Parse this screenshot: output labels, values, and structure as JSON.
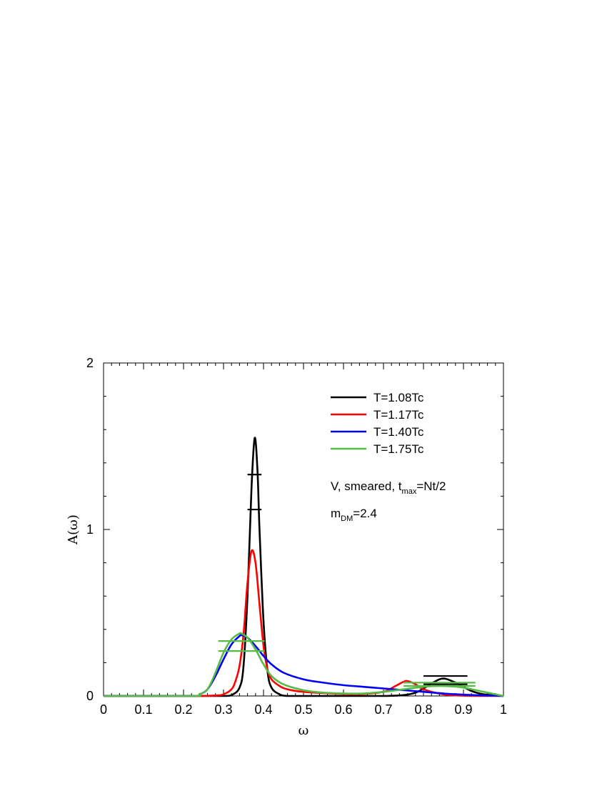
{
  "chart_data": {
    "type": "line",
    "xlabel": "ω",
    "ylabel": "A(ω)",
    "xlim": [
      0,
      1
    ],
    "ylim": [
      0,
      2
    ],
    "xticks": [
      "0",
      "0.1",
      "0.2",
      "0.3",
      "0.4",
      "0.5",
      "0.6",
      "0.7",
      "0.8",
      "0.9",
      "1"
    ],
    "yticks": [
      "0",
      "1",
      "2"
    ],
    "grid": false,
    "legend_position": "top-right",
    "series": [
      {
        "name": "T=1.08Tc",
        "color": "#000000",
        "x": [
          0.0,
          0.2,
          0.3,
          0.32,
          0.34,
          0.35,
          0.36,
          0.37,
          0.378,
          0.385,
          0.39,
          0.4,
          0.41,
          0.42,
          0.44,
          0.46,
          0.5,
          0.6,
          0.7,
          0.75,
          0.78,
          0.8,
          0.82,
          0.84,
          0.85,
          0.86,
          0.88,
          0.9,
          0.92,
          0.95,
          1.0
        ],
        "y": [
          0.0,
          0.0,
          0.0,
          0.005,
          0.05,
          0.18,
          0.6,
          1.25,
          1.55,
          1.35,
          1.0,
          0.45,
          0.15,
          0.05,
          0.01,
          0.0,
          0.0,
          0.0,
          0.0,
          0.005,
          0.02,
          0.045,
          0.075,
          0.1,
          0.105,
          0.1,
          0.08,
          0.055,
          0.03,
          0.01,
          0.0
        ],
        "error_bars": [
          {
            "x": 0.378,
            "y_low": 1.12,
            "y_high": 1.33,
            "x_low": 0.36,
            "x_high": 0.395
          },
          {
            "x": 0.85,
            "y_low": 0.07,
            "y_high": 0.12,
            "x_low": 0.8,
            "x_high": 0.91
          }
        ]
      },
      {
        "name": "T=1.17Tc",
        "color": "#ff0000",
        "x": [
          0.0,
          0.22,
          0.28,
          0.3,
          0.32,
          0.33,
          0.34,
          0.35,
          0.36,
          0.37,
          0.38,
          0.39,
          0.4,
          0.41,
          0.42,
          0.44,
          0.46,
          0.5,
          0.6,
          0.65,
          0.7,
          0.73,
          0.75,
          0.76,
          0.78,
          0.8,
          0.85,
          0.9,
          1.0
        ],
        "y": [
          0.0,
          0.0,
          0.003,
          0.01,
          0.04,
          0.09,
          0.18,
          0.37,
          0.68,
          0.87,
          0.8,
          0.55,
          0.3,
          0.16,
          0.1,
          0.06,
          0.04,
          0.025,
          0.012,
          0.012,
          0.025,
          0.06,
          0.085,
          0.09,
          0.07,
          0.04,
          0.01,
          0.002,
          0.0
        ]
      },
      {
        "name": "T=1.40Tc",
        "color": "#0000ff",
        "x": [
          0.0,
          0.22,
          0.24,
          0.26,
          0.28,
          0.3,
          0.32,
          0.34,
          0.345,
          0.36,
          0.38,
          0.4,
          0.42,
          0.45,
          0.5,
          0.55,
          0.6,
          0.65,
          0.7,
          0.75,
          0.8,
          0.85,
          0.9,
          0.95,
          1.0
        ],
        "y": [
          0.0,
          0.0,
          0.01,
          0.04,
          0.12,
          0.22,
          0.31,
          0.36,
          0.365,
          0.35,
          0.3,
          0.24,
          0.19,
          0.14,
          0.1,
          0.08,
          0.065,
          0.055,
          0.045,
          0.035,
          0.025,
          0.015,
          0.008,
          0.003,
          0.0
        ]
      },
      {
        "name": "T=1.75Tc",
        "color": "#55bb44",
        "x": [
          0.0,
          0.22,
          0.24,
          0.26,
          0.28,
          0.3,
          0.32,
          0.34,
          0.345,
          0.36,
          0.38,
          0.4,
          0.42,
          0.45,
          0.5,
          0.55,
          0.6,
          0.65,
          0.7,
          0.75,
          0.8,
          0.85,
          0.9,
          0.95,
          1.0
        ],
        "y": [
          0.0,
          0.0,
          0.01,
          0.04,
          0.14,
          0.26,
          0.34,
          0.375,
          0.375,
          0.35,
          0.28,
          0.19,
          0.12,
          0.07,
          0.035,
          0.02,
          0.015,
          0.015,
          0.025,
          0.04,
          0.055,
          0.06,
          0.05,
          0.025,
          0.0
        ],
        "error_bars": [
          {
            "x": 0.345,
            "y_low": 0.27,
            "y_high": 0.33,
            "x_low": 0.287,
            "x_high": 0.403
          },
          {
            "x": 0.85,
            "y_low": 0.06,
            "y_high": 0.08,
            "x_low": 0.75,
            "x_high": 0.93
          }
        ]
      }
    ],
    "annotations": [
      {
        "main": "V, smeared, t",
        "sub": "max",
        "tail": "=Nt/2"
      },
      {
        "main": "m",
        "sub": "DM",
        "tail": "=2.4"
      }
    ]
  }
}
